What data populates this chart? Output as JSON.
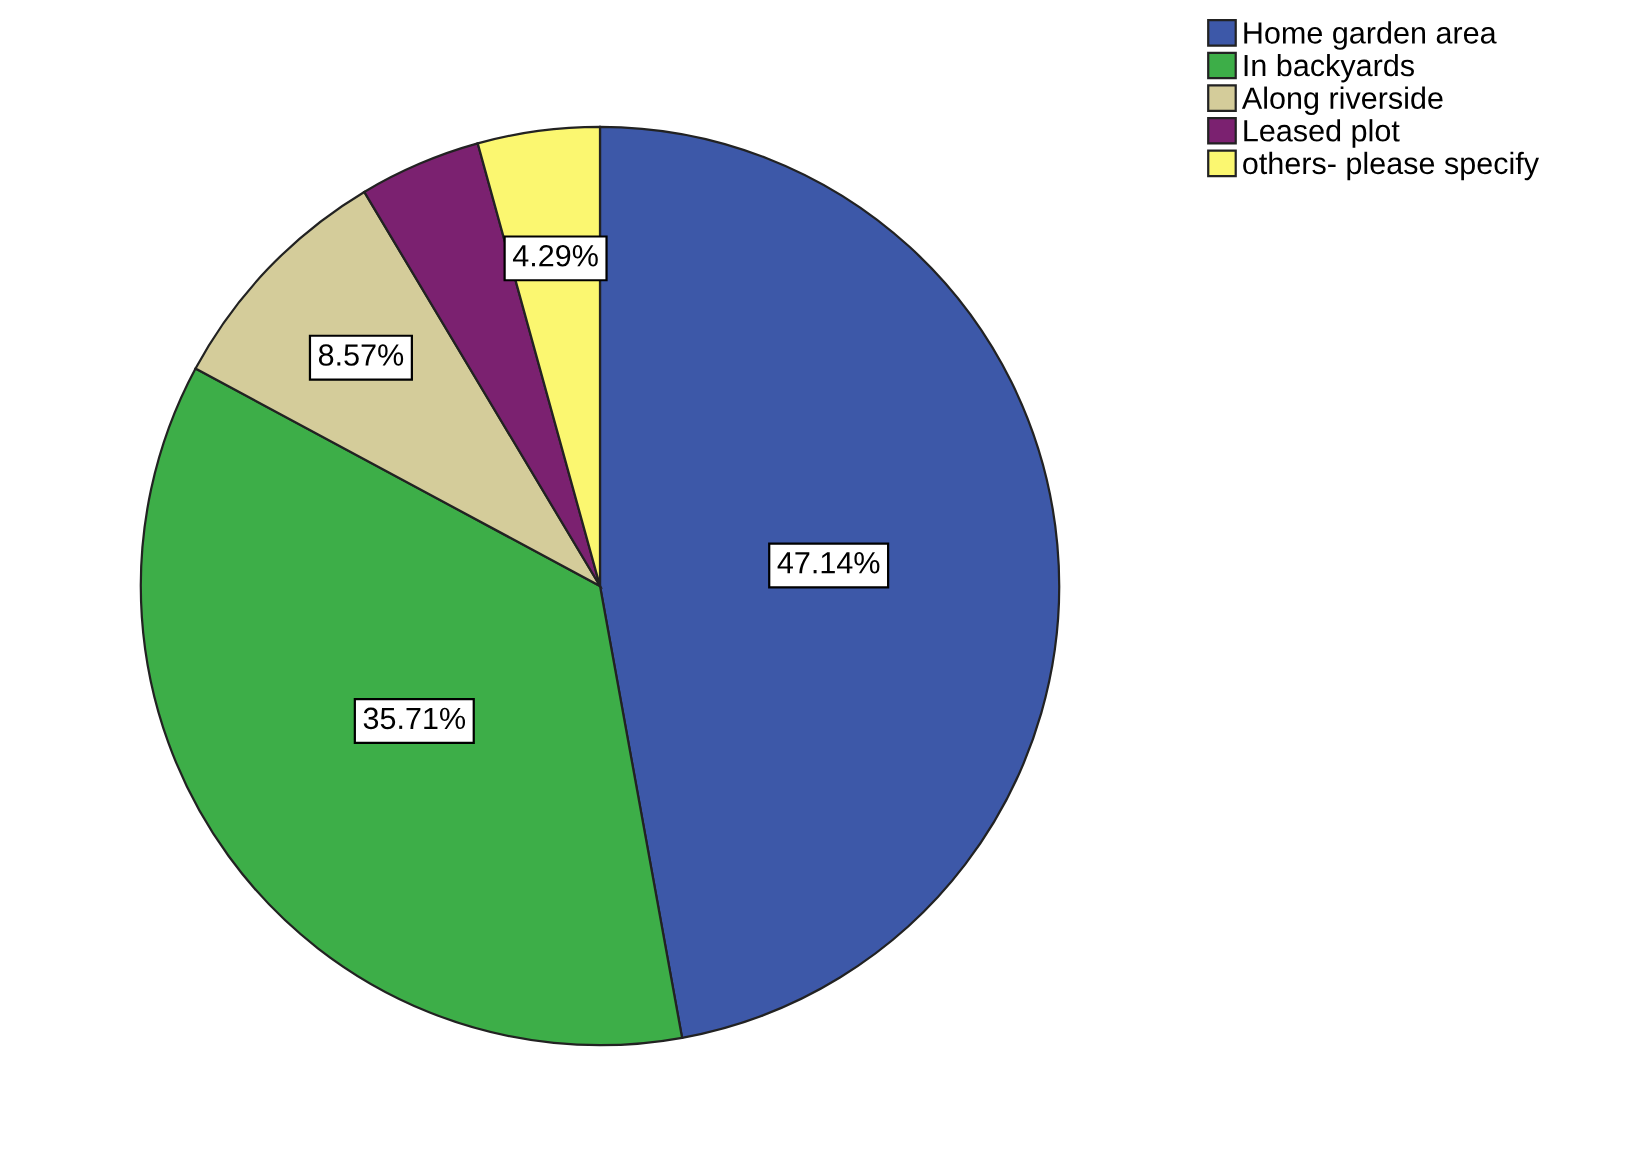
{
  "chart_data": {
    "type": "pie",
    "categories": [
      "Home garden area",
      "In backyards",
      "Along riverside",
      "Leased plot",
      "others- please specify"
    ],
    "values": [
      47.14,
      35.71,
      8.57,
      4.29,
      4.29
    ],
    "colors": [
      "#3d58a8",
      "#3dae48",
      "#d4cc9a",
      "#7b2170",
      "#fbf770"
    ],
    "value_labels": [
      "47.14%",
      "35.71%",
      "8.57%",
      null,
      "4.29%"
    ],
    "legend": "top right"
  }
}
